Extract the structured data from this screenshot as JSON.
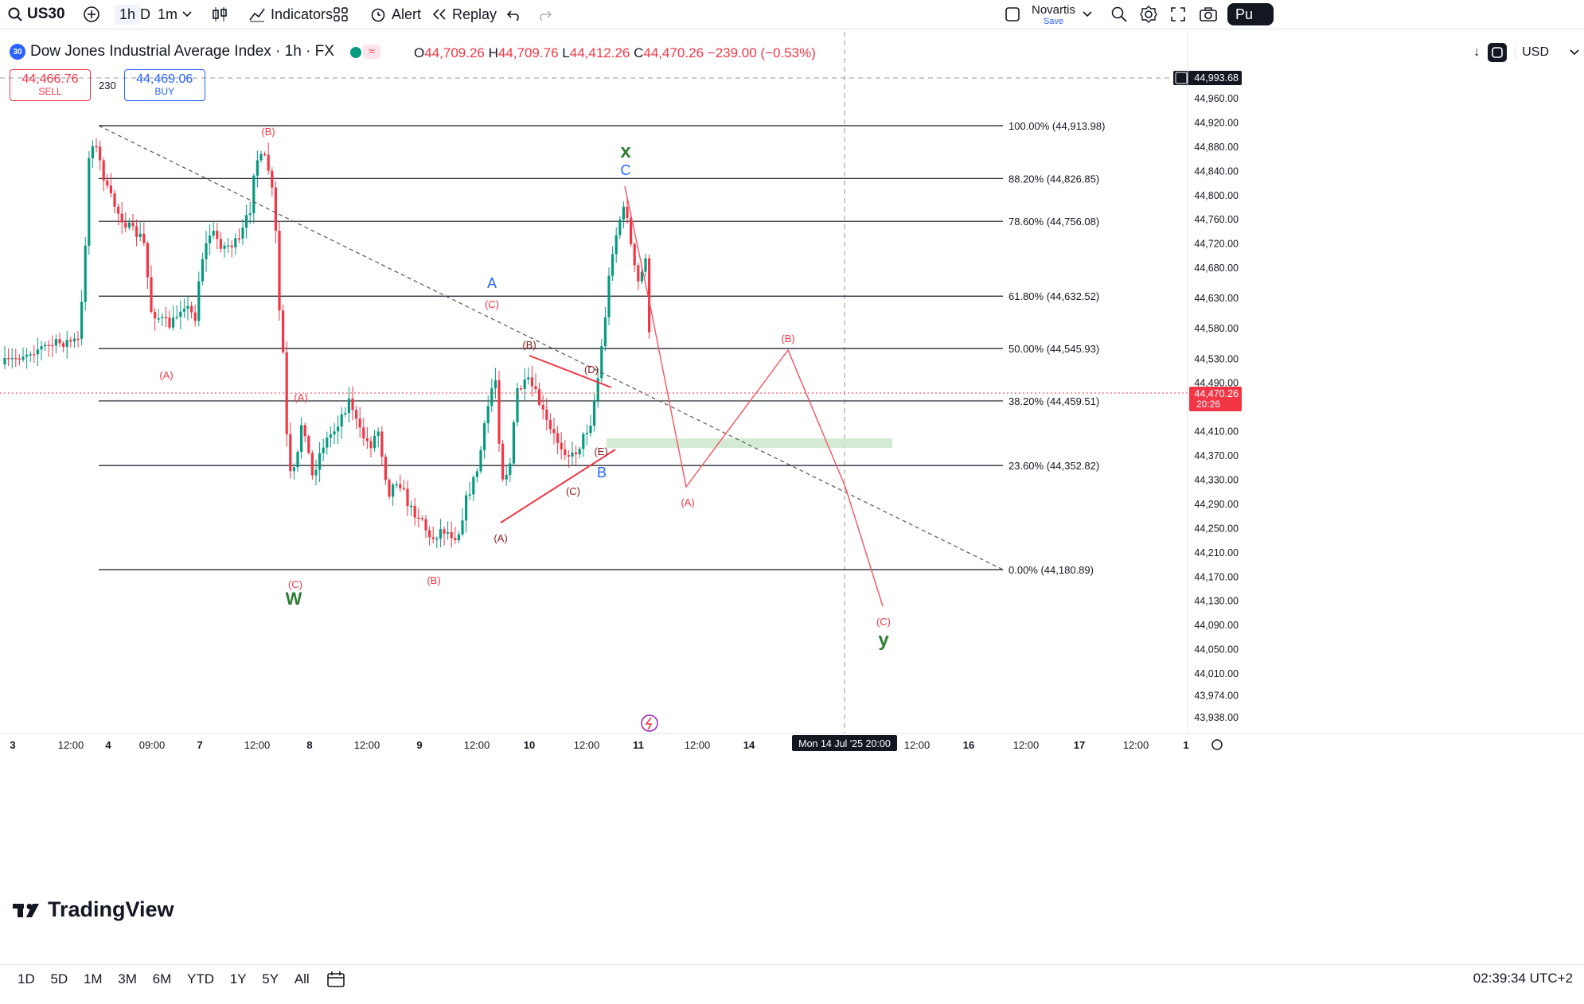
{
  "topbar": {
    "symbol": "US30",
    "intervals": [
      "1h",
      "D",
      "1m"
    ],
    "indicators_label": "Indicators",
    "alert_label": "Alert",
    "replay_label": "Replay",
    "layout_name": "Novartis",
    "save_label": "Save",
    "publish_label": "Pu"
  },
  "legend": {
    "badge": "30",
    "title": "Dow Jones Industrial Average Index · 1h · FX",
    "o_label": "O",
    "o_value": "44,709.26",
    "h_label": "H",
    "h_value": "44,709.76",
    "l_label": "L",
    "l_value": "44,412.26",
    "c_label": "C",
    "c_value": "44,470.26",
    "change": "−239.00 (−0.53%)"
  },
  "trade": {
    "sell_price": "44,466.76",
    "sell_label": "SELL",
    "spread": "230",
    "buy_price": "44,469.06",
    "buy_label": "BUY"
  },
  "axis": {
    "currency": "USD",
    "crosshair_price": "44,993.68",
    "last_price": "44,470.26",
    "last_countdown": "20:26",
    "price_ticks": [
      {
        "v": 44960,
        "t": "44,960.00"
      },
      {
        "v": 44920,
        "t": "44,920.00"
      },
      {
        "v": 44880,
        "t": "44,880.00"
      },
      {
        "v": 44840,
        "t": "44,840.00"
      },
      {
        "v": 44800,
        "t": "44,800.00"
      },
      {
        "v": 44760,
        "t": "44,760.00"
      },
      {
        "v": 44720,
        "t": "44,720.00"
      },
      {
        "v": 44680,
        "t": "44,680.00"
      },
      {
        "v": 44630,
        "t": "44,630.00"
      },
      {
        "v": 44580,
        "t": "44,580.00"
      },
      {
        "v": 44530,
        "t": "44,530.00"
      },
      {
        "v": 44490,
        "t": "44,490.00"
      },
      {
        "v": 44410,
        "t": "44,410.00"
      },
      {
        "v": 44370,
        "t": "44,370.00"
      },
      {
        "v": 44330,
        "t": "44,330.00"
      },
      {
        "v": 44290,
        "t": "44,290.00"
      },
      {
        "v": 44250,
        "t": "44,250.00"
      },
      {
        "v": 44210,
        "t": "44,210.00"
      },
      {
        "v": 44170,
        "t": "44,170.00"
      },
      {
        "v": 44130,
        "t": "44,130.00"
      },
      {
        "v": 44090,
        "t": "44,090.00"
      },
      {
        "v": 44050,
        "t": "44,050.00"
      },
      {
        "v": 44010,
        "t": "44,010.00"
      },
      {
        "v": 43974,
        "t": "43,974.00"
      },
      {
        "v": 43938,
        "t": "43,938.00"
      }
    ],
    "time_ticks": [
      "3",
      "12:00",
      "4",
      "09:00",
      "7",
      "12:00",
      "8",
      "12:00",
      "9",
      "12:00",
      "10",
      "12:00",
      "11",
      "12:00",
      "14",
      "12:00",
      "16",
      "12:00",
      "17",
      "12:00",
      "1"
    ],
    "crosshair_time": "Mon 14 Jul '25   20:00"
  },
  "chart_data": {
    "type": "candlestick",
    "symbol": "US30",
    "fib_levels": [
      {
        "ratio": "100.00%",
        "price": 44913.98,
        "label": "100.00% (44,913.98)"
      },
      {
        "ratio": "88.20%",
        "price": 44826.85,
        "label": "88.20% (44,826.85)"
      },
      {
        "ratio": "78.60%",
        "price": 44756.08,
        "label": "78.60% (44,756.08)"
      },
      {
        "ratio": "61.80%",
        "price": 44632.52,
        "label": "61.80% (44,632.52)"
      },
      {
        "ratio": "50.00%",
        "price": 44545.93,
        "label": "50.00% (44,545.93)"
      },
      {
        "ratio": "38.20%",
        "price": 44459.51,
        "label": "38.20% (44,459.51)"
      },
      {
        "ratio": "23.60%",
        "price": 44352.82,
        "label": "23.60% (44,352.82)"
      },
      {
        "ratio": "0.00%",
        "price": 44180.89,
        "label": "0.00% (44,180.89)"
      }
    ],
    "wave_labels": [
      {
        "text": "(A)",
        "color": "#f23645"
      },
      {
        "text": "(B)",
        "color": "#f23645"
      },
      {
        "text": "(A)",
        "color": "#f23645"
      },
      {
        "text": "(C)",
        "color": "#f23645"
      },
      {
        "text": "W",
        "color": "#2e7d32"
      },
      {
        "text": "(B)",
        "color": "#f23645"
      },
      {
        "text": "A",
        "color": "#2962ff"
      },
      {
        "text": "(C)",
        "color": "#f23645"
      },
      {
        "text": "(A)",
        "color": "#8b1a1a"
      },
      {
        "text": "(B)",
        "color": "#8b1a1a"
      },
      {
        "text": "(C)",
        "color": "#8b1a1a"
      },
      {
        "text": "(D)",
        "color": "#8b1a1a"
      },
      {
        "text": "(E)",
        "color": "#8b1a1a"
      },
      {
        "text": "B",
        "color": "#2962ff"
      },
      {
        "text": "x",
        "color": "#2e7d32"
      },
      {
        "text": "C",
        "color": "#2962ff"
      },
      {
        "text": "(A)",
        "color": "#f23645"
      },
      {
        "text": "(B)",
        "color": "#f23645"
      },
      {
        "text": "(C)",
        "color": "#f23645"
      },
      {
        "text": "y",
        "color": "#2e7d32"
      }
    ],
    "colors": {
      "up": "#089981",
      "down": "#f23645",
      "fib": "#131722",
      "zone": "#c8e6c9"
    }
  },
  "bottombar": {
    "ranges": [
      "1D",
      "5D",
      "1M",
      "3M",
      "6M",
      "YTD",
      "1Y",
      "5Y",
      "All"
    ],
    "clock": "02:39:34 UTC+2"
  },
  "watermark": "TradingView"
}
